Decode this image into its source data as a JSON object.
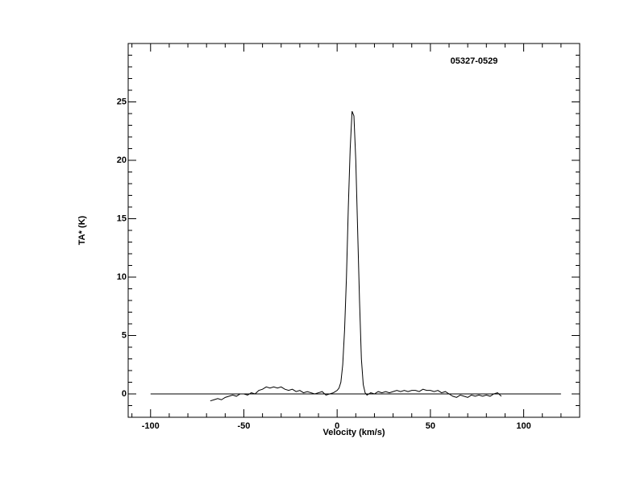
{
  "chart_data": {
    "type": "line",
    "annotation": "05327-0529",
    "xlabel": "Velocity (km/s)",
    "ylabel": "TA* (K)",
    "xlim": [
      -112,
      130
    ],
    "ylim": [
      -2,
      30
    ],
    "xticks": [
      -100,
      -50,
      0,
      50,
      100
    ],
    "yticks": [
      0,
      5,
      10,
      15,
      20,
      25
    ],
    "xminorticks": [
      -110,
      -90,
      -80,
      -70,
      -60,
      -40,
      -30,
      -20,
      -10,
      10,
      20,
      30,
      40,
      60,
      70,
      80,
      90,
      110,
      120,
      130
    ],
    "yminorticks": [
      -1,
      1,
      2,
      3,
      4,
      6,
      7,
      8,
      9,
      11,
      12,
      13,
      14,
      16,
      17,
      18,
      19,
      21,
      22,
      23,
      24,
      26,
      27,
      28,
      29
    ],
    "series": [
      {
        "color": "#000000",
        "x": [
          -68,
          -66,
          -64,
          -62,
          -60,
          -58,
          -56,
          -54,
          -52,
          -50,
          -48,
          -46,
          -44,
          -42,
          -40,
          -38,
          -36,
          -34,
          -32,
          -30,
          -28,
          -26,
          -24,
          -22,
          -20,
          -18,
          -16,
          -14,
          -12,
          -10,
          -8,
          -6,
          -4,
          -2,
          0,
          1,
          2,
          3,
          4,
          5,
          6,
          7,
          8,
          9,
          10,
          11,
          12,
          13,
          14,
          15,
          16,
          18,
          20,
          22,
          24,
          26,
          28,
          30,
          32,
          34,
          36,
          38,
          40,
          42,
          44,
          46,
          48,
          50,
          52,
          54,
          56,
          58,
          60,
          62,
          64,
          66,
          68,
          70,
          72,
          74,
          76,
          78,
          80,
          82,
          84,
          86,
          88
        ],
        "values": [
          -0.6,
          -0.5,
          -0.4,
          -0.5,
          -0.3,
          -0.2,
          -0.1,
          -0.2,
          0,
          0,
          -0.1,
          0.1,
          0,
          0.3,
          0.4,
          0.6,
          0.5,
          0.6,
          0.5,
          0.6,
          0.4,
          0.3,
          0.4,
          0.2,
          0.3,
          0.1,
          0.2,
          0.1,
          0,
          0.1,
          0.2,
          -0.1,
          0,
          0.1,
          0.3,
          0.5,
          1.0,
          2.5,
          5.5,
          10,
          16,
          21,
          24.2,
          23.8,
          20,
          14,
          8,
          3,
          0.8,
          0.1,
          -0.1,
          0.1,
          0,
          0.2,
          0.1,
          0.2,
          0.1,
          0.2,
          0.3,
          0.2,
          0.3,
          0.2,
          0.3,
          0.3,
          0.2,
          0.4,
          0.3,
          0.3,
          0.2,
          0.3,
          0.1,
          0.2,
          0,
          -0.2,
          -0.3,
          -0.1,
          -0.2,
          -0.3,
          -0.1,
          -0.2,
          -0.1,
          -0.2,
          -0.1,
          -0.2,
          0,
          0.1,
          -0.2
        ]
      },
      {
        "color": "#000000",
        "x": [
          -100,
          120
        ],
        "values": [
          0,
          0
        ]
      }
    ]
  }
}
